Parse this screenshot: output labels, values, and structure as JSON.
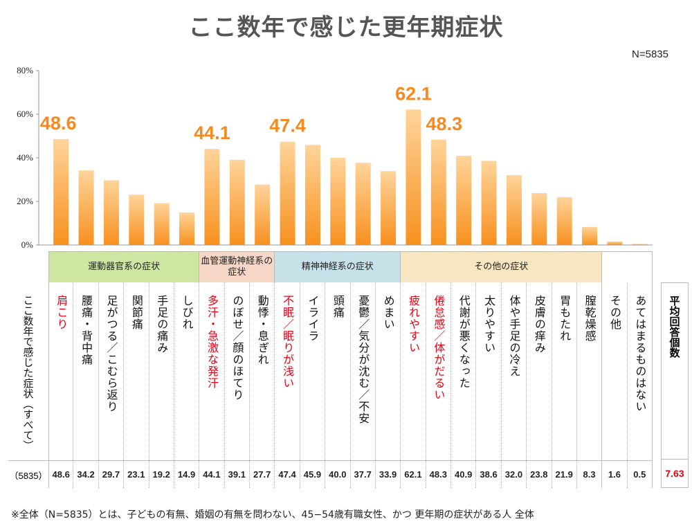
{
  "title": "ここ数年で感じた更年期症状",
  "sample_note": "N=5835",
  "footnote": "※全体（N=5835）とは、子どもの有無、婚姻の有無を問わない、45−54歳有職女性、かつ 更年期の症状がある人 全体",
  "row_label": "ここ数年で感じた症状（すべて）",
  "base_label": "（5835）",
  "average": {
    "label": "平均回答個数",
    "value": "7.63"
  },
  "colors": {
    "bar_top": "#ffd49a",
    "bar_bottom": "#f7901e",
    "highlight_text": "#f7891f",
    "red_label": "#e60012"
  },
  "groups": [
    {
      "label": "運動器官系の症状",
      "span": 6,
      "color": "#cfe6a3"
    },
    {
      "label": "血管運動神経系の症状",
      "span": 3,
      "color": "#f6d6c6"
    },
    {
      "label": "精神神経系の症状",
      "span": 5,
      "color": "#c6e1e8"
    },
    {
      "label": "その他の症状",
      "span": 8,
      "color": "#f6e6c1"
    },
    {
      "label": "",
      "span": 2,
      "color": "#ffffff"
    }
  ],
  "chart_data": {
    "type": "bar",
    "ylim": [
      0,
      80
    ],
    "yticks": [
      "0%",
      "20%",
      "40%",
      "60%",
      "80%"
    ],
    "ytick_values": [
      0,
      20,
      40,
      60,
      80
    ],
    "categories": [
      "肩こり",
      "腰痛・背中痛",
      "足がつる／こむら返り",
      "関節痛",
      "手足の痛み",
      "しびれ",
      "多汗・急激な発汗",
      "のぼせ／顔のほてり",
      "動悸・息ぎれ",
      "不眠／眠りが浅い",
      "イライラ",
      "頭痛",
      "憂鬱／気分が沈む／不安",
      "めまい",
      "疲れやすい",
      "倦怠感／体がだるい",
      "代謝が悪くなった",
      "太りやすい",
      "体や手足の冷え",
      "皮膚の痒み",
      "胃もたれ",
      "膣乾燥感",
      "その他",
      "あてはまるものはない"
    ],
    "values": [
      48.6,
      34.2,
      29.7,
      23.1,
      19.2,
      14.9,
      44.1,
      39.1,
      27.7,
      47.4,
      45.9,
      40.0,
      37.7,
      33.9,
      62.1,
      48.3,
      40.9,
      38.6,
      32.0,
      23.8,
      21.9,
      8.3,
      1.6,
      0.5
    ],
    "value_labels": [
      "48.6",
      "34.2",
      "29.7",
      "23.1",
      "19.2",
      "14.9",
      "44.1",
      "39.1",
      "27.7",
      "47.4",
      "45.9",
      "40.0",
      "37.7",
      "33.9",
      "62.1",
      "48.3",
      "40.9",
      "38.6",
      "32.0",
      "23.8",
      "21.9",
      "8.3",
      "1.6",
      "0.5"
    ],
    "highlighted": [
      0,
      6,
      9,
      14,
      15
    ]
  }
}
